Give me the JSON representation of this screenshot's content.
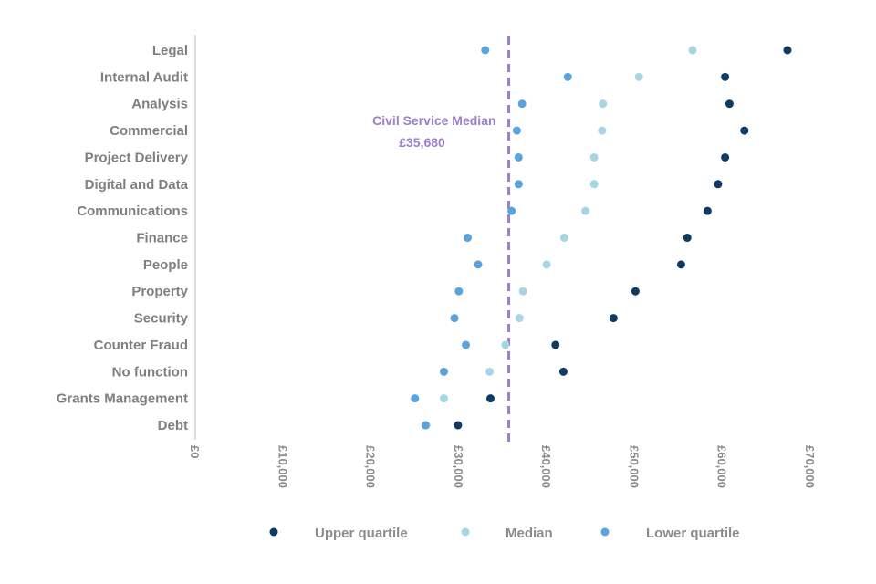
{
  "chart_data": {
    "type": "scatter",
    "orientation": "horizontal",
    "categories": [
      "Legal",
      "Internal Audit",
      "Analysis",
      "Commercial",
      "Project Delivery",
      "Digital and Data",
      "Communications",
      "Finance",
      "People",
      "Property",
      "Security",
      "Counter Fraud",
      "No function",
      "Grants Management",
      "Debt"
    ],
    "series": [
      {
        "name": "Upper quartile",
        "color": "#0e3a63",
        "values": [
          67400,
          60300,
          60800,
          62500,
          60300,
          59500,
          58300,
          56000,
          55300,
          50100,
          47600,
          41000,
          41900,
          33600,
          29900
        ]
      },
      {
        "name": "Median",
        "color": "#a8d5e6",
        "values": [
          56600,
          50500,
          46400,
          46300,
          45400,
          45400,
          44400,
          42000,
          40000,
          37300,
          36900,
          35300,
          33500,
          28300,
          26300
        ]
      },
      {
        "name": "Lower quartile",
        "color": "#5ba3dc",
        "values": [
          33000,
          42400,
          37200,
          36600,
          36800,
          36800,
          36000,
          31000,
          32200,
          30000,
          29500,
          30800,
          28300,
          25000,
          26200
        ]
      }
    ],
    "xlim": [
      0,
      70000
    ],
    "xticks": [
      0,
      10000,
      20000,
      30000,
      40000,
      50000,
      60000,
      70000
    ],
    "xtick_labels": [
      "£0",
      "£10,000",
      "£20,000",
      "£30,000",
      "£40,000",
      "£50,000",
      "£60,000",
      "£70,000"
    ],
    "reference_line": {
      "value": 35680,
      "label_line1": "Civil Service Median",
      "label_line2": "£35,680",
      "color": "#9b7fcb"
    },
    "legend": {
      "placement": "bottom",
      "entries": [
        "Upper quartile",
        "Median",
        "Lower quartile"
      ]
    },
    "title": "",
    "xlabel": "",
    "ylabel": ""
  }
}
